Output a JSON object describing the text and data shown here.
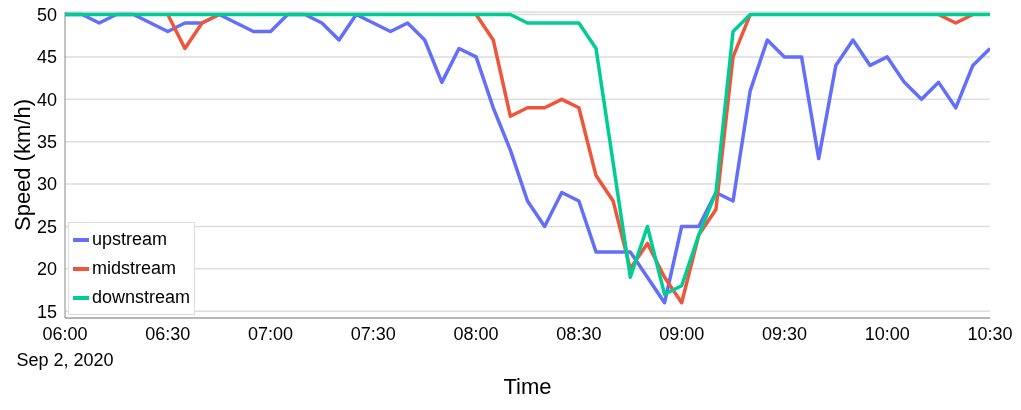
{
  "chart_data": {
    "type": "line",
    "xlabel": "Time",
    "ylabel": "Speed (km/h)",
    "x": [
      "2020-09-02T06:00",
      "2020-09-02T06:05",
      "2020-09-02T06:10",
      "2020-09-02T06:15",
      "2020-09-02T06:20",
      "2020-09-02T06:25",
      "2020-09-02T06:30",
      "2020-09-02T06:35",
      "2020-09-02T06:40",
      "2020-09-02T06:45",
      "2020-09-02T06:50",
      "2020-09-02T06:55",
      "2020-09-02T07:00",
      "2020-09-02T07:05",
      "2020-09-02T07:10",
      "2020-09-02T07:15",
      "2020-09-02T07:20",
      "2020-09-02T07:25",
      "2020-09-02T07:30",
      "2020-09-02T07:35",
      "2020-09-02T07:40",
      "2020-09-02T07:45",
      "2020-09-02T07:50",
      "2020-09-02T07:55",
      "2020-09-02T08:00",
      "2020-09-02T08:05",
      "2020-09-02T08:10",
      "2020-09-02T08:15",
      "2020-09-02T08:20",
      "2020-09-02T08:25",
      "2020-09-02T08:30",
      "2020-09-02T08:35",
      "2020-09-02T08:40",
      "2020-09-02T08:45",
      "2020-09-02T08:50",
      "2020-09-02T08:55",
      "2020-09-02T09:00",
      "2020-09-02T09:05",
      "2020-09-02T09:10",
      "2020-09-02T09:15",
      "2020-09-02T09:20",
      "2020-09-02T09:25",
      "2020-09-02T09:30",
      "2020-09-02T09:35",
      "2020-09-02T09:40",
      "2020-09-02T09:45",
      "2020-09-02T09:50",
      "2020-09-02T09:55",
      "2020-09-02T10:00",
      "2020-09-02T10:05",
      "2020-09-02T10:10",
      "2020-09-02T10:15",
      "2020-09-02T10:20",
      "2020-09-02T10:25",
      "2020-09-02T10:30"
    ],
    "series": [
      {
        "name": "upstream",
        "color": "#636efa",
        "values": [
          50,
          50,
          49,
          50,
          50,
          49,
          48,
          49,
          49,
          50,
          49,
          48,
          48,
          50,
          50,
          49,
          47,
          50,
          49,
          48,
          49,
          47,
          42,
          46,
          45,
          39,
          34,
          28,
          25,
          29,
          28,
          22,
          22,
          22,
          19,
          16,
          25,
          25,
          29,
          28,
          41,
          47,
          45,
          45,
          33,
          44,
          47,
          44,
          45,
          42,
          40,
          42,
          39,
          44,
          46
        ]
      },
      {
        "name": "midstream",
        "color": "#ef553b",
        "values": [
          null,
          null,
          null,
          null,
          null,
          null,
          50,
          46,
          49,
          50,
          null,
          null,
          null,
          null,
          null,
          null,
          null,
          null,
          null,
          null,
          null,
          null,
          null,
          null,
          50,
          47,
          38,
          39,
          39,
          40,
          39,
          31,
          28,
          20,
          23,
          19,
          16,
          24,
          27,
          45,
          50,
          null,
          null,
          null,
          null,
          null,
          null,
          null,
          null,
          null,
          null,
          50,
          49,
          50,
          null
        ]
      },
      {
        "name": "downstream",
        "color": "#00cc96",
        "values": [
          50,
          50,
          50,
          50,
          50,
          50,
          50,
          50,
          50,
          50,
          50,
          50,
          50,
          50,
          50,
          50,
          50,
          50,
          50,
          50,
          50,
          50,
          50,
          50,
          50,
          50,
          50,
          49,
          49,
          49,
          49,
          46,
          32.5,
          19,
          25,
          17,
          18,
          24,
          29,
          48,
          50,
          50,
          50,
          50,
          50,
          50,
          50,
          50,
          50,
          50,
          50,
          50,
          50,
          50,
          50
        ]
      }
    ],
    "xlim": [
      "2020-09-02T06:00",
      "2020-09-02T10:30"
    ],
    "xticks": [
      {
        "value": "2020-09-02T06:00",
        "label": "06:00\nSep 2, 2020"
      },
      {
        "value": "2020-09-02T06:30",
        "label": "06:30"
      },
      {
        "value": "2020-09-02T07:00",
        "label": "07:00"
      },
      {
        "value": "2020-09-02T07:30",
        "label": "07:30"
      },
      {
        "value": "2020-09-02T08:00",
        "label": "08:00"
      },
      {
        "value": "2020-09-02T08:30",
        "label": "08:30"
      },
      {
        "value": "2020-09-02T09:00",
        "label": "09:00"
      },
      {
        "value": "2020-09-02T09:30",
        "label": "09:30"
      },
      {
        "value": "2020-09-02T10:00",
        "label": "10:00"
      },
      {
        "value": "2020-09-02T10:30",
        "label": "10:30"
      }
    ],
    "ylim": [
      14.2,
      50.3
    ],
    "yticks": [
      15,
      20,
      25,
      30,
      35,
      40,
      45,
      50
    ],
    "grid": "y",
    "legend": "bottom left",
    "marker": "none",
    "line_style": "solid"
  }
}
